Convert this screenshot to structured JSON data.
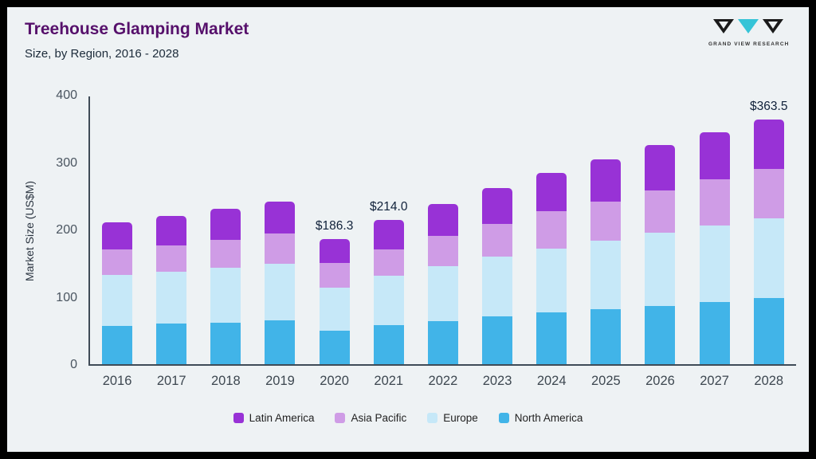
{
  "header": {
    "title": "Treehouse Glamping Market",
    "subtitle": "Size, by Region, 2016 - 2028"
  },
  "logo": {
    "text": "GRAND VIEW RESEARCH",
    "accent_color": "#35c4d7"
  },
  "chart_data": {
    "type": "bar",
    "stacked": true,
    "title": "Treehouse Glamping Market Size, by Region, 2016 - 2028",
    "ylabel": "Market Size (US$M)",
    "ylim": [
      0,
      400
    ],
    "yticks": [
      0,
      100,
      200,
      300,
      400
    ],
    "grid": false,
    "legend_position": "bottom",
    "categories": [
      2016,
      2017,
      2018,
      2019,
      2020,
      2021,
      2022,
      2023,
      2024,
      2025,
      2026,
      2027,
      2028
    ],
    "series": [
      {
        "name": "North America",
        "color": "#41b4e8",
        "values": [
          57,
          60,
          62,
          65,
          50,
          58,
          64,
          71,
          77,
          82,
          87,
          92,
          98
        ]
      },
      {
        "name": "Europe",
        "color": "#c6e8f8",
        "values": [
          76,
          77,
          81,
          84,
          64,
          73,
          81,
          89,
          95,
          102,
          108,
          114,
          119
        ]
      },
      {
        "name": "Asia Pacific",
        "color": "#cf9ce6",
        "values": [
          37,
          39,
          42,
          45,
          36,
          40,
          46,
          48,
          55,
          58,
          63,
          68,
          73
        ]
      },
      {
        "name": "Latin America",
        "color": "#9832d6",
        "values": [
          41,
          44,
          46,
          47,
          36.3,
          43,
          47,
          54,
          57,
          62,
          67,
          70,
          73.5
        ]
      }
    ],
    "totals": [
      211,
      220,
      231,
      241,
      186.3,
      214,
      238,
      262,
      284,
      304,
      325,
      344,
      363.5
    ],
    "annotations": [
      {
        "category": "2020",
        "text": "$186.3"
      },
      {
        "category": "2021",
        "text": "$214.0"
      },
      {
        "category": "2028",
        "text": "$363.5"
      }
    ],
    "legend": [
      "Latin America",
      "Asia Pacific",
      "Europe",
      "North America"
    ]
  }
}
